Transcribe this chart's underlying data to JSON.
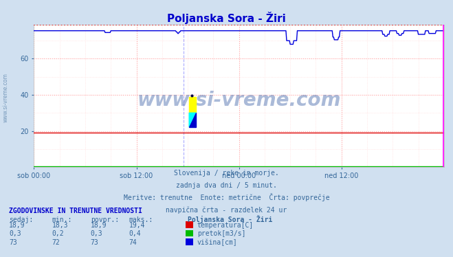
{
  "title": "Poljanska Sora - Žiri",
  "title_color": "#0000cc",
  "bg_color": "#d0e0f0",
  "plot_bg_color": "#ffffff",
  "grid_color_major": "#ffaaaa",
  "grid_color_minor": "#ffdddd",
  "xlim": [
    0,
    576
  ],
  "ylim": [
    0,
    79
  ],
  "yticks": [
    20,
    40,
    60
  ],
  "xtick_labels": [
    "sob 00:00",
    "sob 12:00",
    "ned 00:00",
    "ned 12:00"
  ],
  "xtick_positions": [
    0,
    144,
    288,
    432
  ],
  "temp_color": "#dd0000",
  "pretok_color": "#00bb00",
  "visina_color": "#0000dd",
  "border_color_top": "#dd0000",
  "border_color_right": "#ff00ff",
  "vline_color": "#aaaaff",
  "watermark": "www.si-vreme.com",
  "watermark_color": "#4466aa",
  "subtitle1": "Slovenija / reke in morje.",
  "subtitle2": "zadnja dva dni / 5 minut.",
  "subtitle3": "Meritve: trenutne  Enote: metrične  Črta: povprečje",
  "subtitle4": "navpična črta - razdelek 24 ur",
  "table_header": "ZGODOVINSKE IN TRENUTNE VREDNOSTI",
  "col_headers": [
    "sedaj:",
    "min.:",
    "povpr.:",
    "maks.:"
  ],
  "row1": [
    "18,9",
    "18,3",
    "18,9",
    "19,4"
  ],
  "row2": [
    "0,3",
    "0,2",
    "0,3",
    "0,4"
  ],
  "row3": [
    "73",
    "72",
    "73",
    "74"
  ],
  "legend1": "temperatura[C]",
  "legend2": "pretok[m3/s]",
  "legend3": "višina[cm]",
  "station_label": "Poljanska Sora - Žiri",
  "n_points": 576,
  "temp_level": 19.0,
  "pretok_level": 0.5,
  "visina_level": 75.5,
  "sidebar_text": "www.si-vreme.com",
  "sidebar_color": "#7799bb",
  "text_color": "#336699"
}
